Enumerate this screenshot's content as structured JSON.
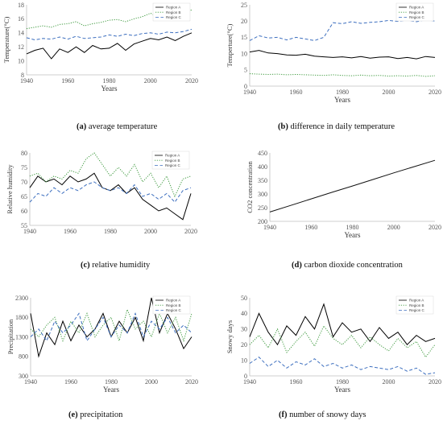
{
  "colors": {
    "region_a": "#000000",
    "region_b": "#3f9a3f",
    "region_c": "#3d6fbf",
    "axis": "#bfbfbf",
    "single": "#111111"
  },
  "chart_data": [
    {
      "id": "a",
      "type": "line",
      "caption_letter": "(a)",
      "caption_text": " average temperature",
      "ylabel": "Temperature(°C)",
      "xlabel": "Years",
      "xlim": [
        1940,
        2020
      ],
      "xticks": [
        1940,
        1960,
        1980,
        2000,
        2020
      ],
      "ylim": [
        8,
        18
      ],
      "yticks": [
        8,
        10,
        12,
        14,
        16,
        18
      ],
      "legend": "top-right",
      "x": [
        1940,
        1944,
        1948,
        1952,
        1956,
        1960,
        1964,
        1968,
        1972,
        1976,
        1980,
        1984,
        1988,
        1992,
        1996,
        2000,
        2004,
        2008,
        2012,
        2016,
        2020
      ],
      "series": [
        {
          "name": "Region A",
          "style": "solid",
          "values": [
            11.0,
            11.5,
            11.8,
            10.3,
            11.7,
            11.2,
            12.0,
            11.2,
            12.2,
            11.7,
            11.8,
            12.5,
            11.5,
            12.4,
            12.8,
            13.2,
            13.0,
            13.4,
            12.9,
            13.5,
            14.0
          ]
        },
        {
          "name": "Region B",
          "style": "dotted",
          "values": [
            14.6,
            14.8,
            15.0,
            14.8,
            15.2,
            15.3,
            15.6,
            15.0,
            15.3,
            15.5,
            15.8,
            15.9,
            15.6,
            16.0,
            16.3,
            16.8,
            16.2,
            16.4,
            16.6,
            16.5,
            17.3
          ]
        },
        {
          "name": "Region C",
          "style": "dashed",
          "values": [
            13.3,
            13.0,
            13.2,
            13.1,
            13.4,
            13.1,
            13.5,
            13.2,
            13.3,
            13.4,
            13.7,
            13.5,
            13.8,
            13.6,
            13.9,
            14.0,
            13.8,
            14.1,
            14.0,
            14.2,
            14.5
          ]
        }
      ]
    },
    {
      "id": "b",
      "type": "line",
      "caption_letter": "(b)",
      "caption_text": " difference in daily temperature",
      "ylabel": "Temperture(°C)",
      "xlabel": "Years",
      "xlim": [
        1940,
        2020
      ],
      "xticks": [
        1940,
        1960,
        1980,
        2000,
        2020
      ],
      "ylim": [
        0,
        25
      ],
      "yticks": [
        0,
        5,
        10,
        15,
        20,
        25
      ],
      "legend": "top-right",
      "x": [
        1940,
        1944,
        1948,
        1952,
        1956,
        1960,
        1964,
        1968,
        1972,
        1976,
        1980,
        1984,
        1988,
        1992,
        1996,
        2000,
        2004,
        2008,
        2012,
        2016,
        2020
      ],
      "series": [
        {
          "name": "Region A",
          "style": "solid",
          "values": [
            10.5,
            11.0,
            10.2,
            10.0,
            9.6,
            9.5,
            9.8,
            9.2,
            9.0,
            8.8,
            9.0,
            8.7,
            9.1,
            8.6,
            8.9,
            9.0,
            8.5,
            8.8,
            8.4,
            9.1,
            8.8
          ]
        },
        {
          "name": "Region B",
          "style": "dotted",
          "values": [
            3.8,
            3.7,
            3.6,
            3.7,
            3.5,
            3.6,
            3.5,
            3.4,
            3.3,
            3.5,
            3.3,
            3.2,
            3.4,
            3.2,
            3.3,
            3.1,
            3.2,
            3.1,
            3.3,
            3.0,
            3.2
          ]
        },
        {
          "name": "Region C",
          "style": "dashed",
          "values": [
            14.0,
            15.5,
            14.8,
            15.0,
            14.2,
            15.0,
            14.5,
            14.0,
            15.0,
            19.5,
            19.2,
            19.8,
            19.3,
            19.6,
            19.8,
            20.2,
            19.9,
            20.3,
            19.8,
            20.4,
            20.0
          ]
        }
      ]
    },
    {
      "id": "c",
      "type": "line",
      "caption_letter": "(c)",
      "caption_text": " relative humidity",
      "ylabel": "Relative humidity",
      "xlabel": "",
      "xlim": [
        1940,
        2020
      ],
      "xticks": [
        1940,
        1960,
        1980,
        2000,
        2020
      ],
      "ylim": [
        55,
        80
      ],
      "yticks": [
        55,
        60,
        65,
        70,
        75,
        80
      ],
      "legend": "top-right",
      "x": [
        1940,
        1944,
        1948,
        1952,
        1956,
        1960,
        1964,
        1968,
        1972,
        1976,
        1980,
        1984,
        1988,
        1992,
        1996,
        2000,
        2004,
        2008,
        2012,
        2016,
        2020
      ],
      "series": [
        {
          "name": "Region A",
          "style": "solid",
          "values": [
            68,
            72,
            70,
            71,
            69,
            72,
            70,
            71,
            73,
            68,
            67,
            69,
            66,
            68,
            64,
            62,
            60,
            61,
            59,
            57,
            66
          ]
        },
        {
          "name": "Region B",
          "style": "dotted",
          "values": [
            72,
            73,
            70,
            72,
            71,
            74,
            73,
            78,
            80,
            76,
            72,
            75,
            72,
            76,
            70,
            73,
            68,
            72,
            65,
            71,
            72
          ]
        },
        {
          "name": "Region C",
          "style": "dashed",
          "values": [
            63,
            66,
            65,
            68,
            66,
            68,
            67,
            69,
            70,
            68,
            67,
            68,
            66,
            69,
            65,
            66,
            64,
            66,
            63,
            67,
            68
          ]
        }
      ]
    },
    {
      "id": "d",
      "type": "line",
      "caption_letter": "(d)",
      "caption_text": " carbon dioxide concentration",
      "ylabel": "CO2 concentration",
      "xlabel": "Years",
      "xlim": [
        1940,
        2020
      ],
      "xticks": [
        1940,
        1960,
        1980,
        2000,
        2020
      ],
      "ylim": [
        200,
        450
      ],
      "yticks": [
        200,
        250,
        300,
        350,
        400,
        450
      ],
      "legend": "none",
      "x": [
        1940,
        1950,
        1960,
        1970,
        1980,
        1990,
        2000,
        2010,
        2020
      ],
      "series": [
        {
          "name": "",
          "style": "solid",
          "values": [
            234,
            258,
            282,
            306,
            329,
            353,
            377,
            400,
            423
          ]
        }
      ]
    },
    {
      "id": "e",
      "type": "line",
      "caption_letter": "(e)",
      "caption_text": " precipitation",
      "ylabel": "Precipitation",
      "xlabel": "Years",
      "xlim": [
        1940,
        2020
      ],
      "xticks": [
        1940,
        1960,
        1980,
        2000,
        2020
      ],
      "ylim": [
        300,
        2300
      ],
      "yticks": [
        300,
        800,
        1300,
        1800,
        2300
      ],
      "legend": "top-right",
      "x": [
        1940,
        1944,
        1948,
        1952,
        1956,
        1960,
        1964,
        1968,
        1972,
        1976,
        1980,
        1984,
        1988,
        1992,
        1996,
        2000,
        2004,
        2008,
        2012,
        2016,
        2020
      ],
      "series": [
        {
          "name": "Region A",
          "style": "solid",
          "values": [
            1900,
            800,
            1400,
            1100,
            1700,
            1200,
            1600,
            1300,
            1500,
            1900,
            1300,
            1700,
            1400,
            1800,
            1200,
            2300,
            1400,
            1900,
            1500,
            1000,
            1300
          ]
        },
        {
          "name": "Region B",
          "style": "dotted",
          "values": [
            1500,
            1300,
            1600,
            1800,
            1200,
            1700,
            1400,
            1900,
            1300,
            1600,
            1800,
            1200,
            2000,
            1500,
            1700,
            1300,
            1900,
            1400,
            1800,
            1200,
            1900
          ]
        },
        {
          "name": "Region C",
          "style": "dashed",
          "values": [
            1300,
            1500,
            1200,
            1700,
            1400,
            1600,
            1900,
            1200,
            1500,
            1800,
            1300,
            1600,
            1400,
            1900,
            1300,
            1700,
            1500,
            1800,
            1400,
            1600,
            1400
          ]
        }
      ]
    },
    {
      "id": "f",
      "type": "line",
      "caption_letter": "(f)",
      "caption_text": " number of snowy days",
      "ylabel": "Snowy days",
      "xlabel": "Years",
      "xlim": [
        1940,
        2020
      ],
      "xticks": [
        1940,
        1960,
        1980,
        2000,
        2020
      ],
      "ylim": [
        0,
        50
      ],
      "yticks": [
        0,
        10,
        20,
        30,
        40,
        50
      ],
      "legend": "top-right",
      "x": [
        1940,
        1944,
        1948,
        1952,
        1956,
        1960,
        1964,
        1968,
        1972,
        1976,
        1980,
        1984,
        1988,
        1992,
        1996,
        2000,
        2004,
        2008,
        2012,
        2016,
        2020
      ],
      "series": [
        {
          "name": "Region A",
          "style": "solid",
          "values": [
            25,
            40,
            28,
            20,
            32,
            26,
            38,
            30,
            46,
            25,
            34,
            28,
            30,
            22,
            31,
            24,
            28,
            20,
            26,
            22,
            24
          ]
        },
        {
          "name": "Region B",
          "style": "dotted",
          "values": [
            20,
            26,
            18,
            30,
            15,
            22,
            28,
            19,
            32,
            24,
            20,
            26,
            18,
            25,
            20,
            16,
            24,
            18,
            22,
            12,
            20
          ]
        },
        {
          "name": "Region C",
          "style": "dashed",
          "values": [
            8,
            12,
            6,
            10,
            5,
            9,
            7,
            11,
            6,
            8,
            5,
            7,
            4,
            6,
            5,
            4,
            6,
            3,
            5,
            1,
            2
          ]
        }
      ]
    }
  ]
}
